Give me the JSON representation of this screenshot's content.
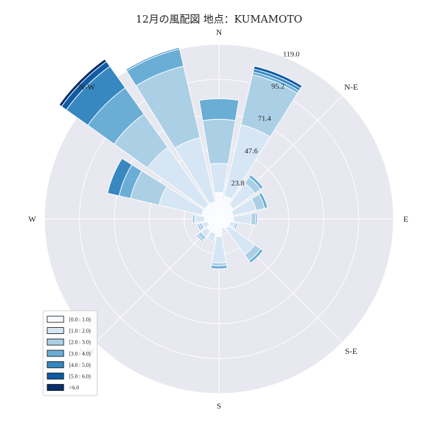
{
  "chart_data": {
    "type": "windrose",
    "title": "12月の風配図 地点：KUMAMOTO",
    "directions": [
      "N",
      "NNE",
      "N-E",
      "ENE",
      "E",
      "ESE",
      "S-E",
      "SSE",
      "S",
      "SSW",
      "S-W",
      "WSW",
      "W",
      "WNW",
      "N-W",
      "NNW"
    ],
    "compass_labels": [
      "N",
      "N-E",
      "E",
      "S-E",
      "S",
      "S-W",
      "W",
      "N-W"
    ],
    "r_ticks": [
      "23.8",
      "47.6",
      "71.4",
      "95.2",
      "119.0"
    ],
    "r_tick_values": [
      23.8,
      47.6,
      71.4,
      95.2,
      119.0
    ],
    "r_max": 119.0,
    "bins": [
      "[0.0 : 1.0)",
      "[1.0 : 2.0)",
      "[2.0 : 3.0)",
      "[3.0 : 4.0)",
      "[4.0 : 5.0)",
      "[5.0 : 6.0)",
      ">6.0"
    ],
    "bin_colors": [
      "#f7fbff",
      "#d6e6f4",
      "#abd0e6",
      "#6aaed6",
      "#3787c0",
      "#105ba4",
      "#08306b"
    ],
    "counts": [
      [
        18,
        20,
        30,
        14,
        0,
        0,
        0
      ],
      [
        16,
        50,
        35,
        2,
        2,
        2,
        0
      ],
      [
        12,
        18,
        5,
        2,
        0,
        0,
        0
      ],
      [
        10,
        16,
        6,
        2,
        0,
        0,
        0
      ],
      [
        10,
        12,
        3,
        1,
        0,
        0,
        0
      ],
      [
        8,
        3,
        1,
        1,
        0,
        0,
        0
      ],
      [
        8,
        22,
        5,
        2,
        0,
        0,
        0
      ],
      [
        7,
        2,
        1,
        0,
        0,
        0,
        0
      ],
      [
        12,
        18,
        2,
        2,
        0,
        0,
        0
      ],
      [
        10,
        4,
        1,
        0,
        0,
        0,
        0
      ],
      [
        10,
        5,
        3,
        1,
        0,
        0,
        0
      ],
      [
        8,
        4,
        2,
        1,
        0,
        0,
        0
      ],
      [
        10,
        6,
        1,
        1,
        0,
        0,
        0
      ],
      [
        12,
        30,
        20,
        8,
        8,
        0,
        0
      ],
      [
        12,
        48,
        28,
        22,
        18,
        4,
        2
      ],
      [
        12,
        45,
        50,
        12,
        1,
        0,
        0
      ]
    ],
    "legend_position": "lower-left",
    "grid": true
  }
}
